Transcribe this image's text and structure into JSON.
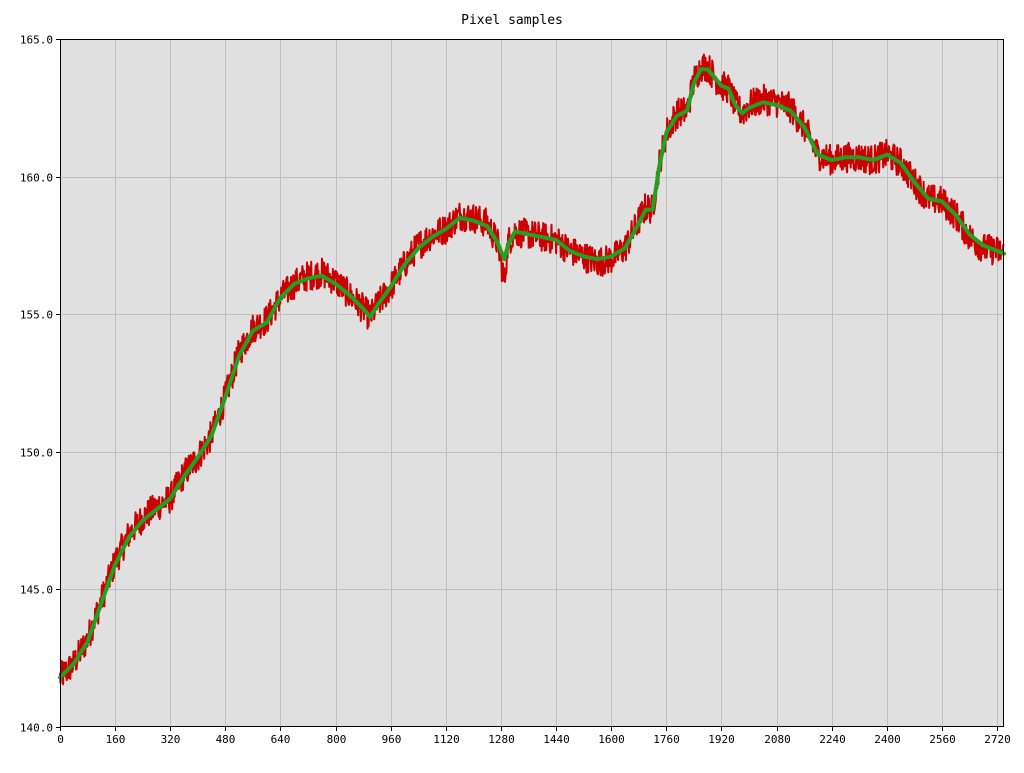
{
  "chart_data": {
    "type": "line",
    "title": "Pixel samples",
    "xlabel": "",
    "ylabel": "",
    "xlim": [
      0,
      2740
    ],
    "ylim": [
      140.0,
      165.0
    ],
    "x_ticks": [
      "0",
      "160",
      "320",
      "480",
      "640",
      "800",
      "960",
      "1120",
      "1280",
      "1440",
      "1600",
      "1760",
      "1920",
      "2080",
      "2240",
      "2400",
      "2560",
      "2720"
    ],
    "y_ticks": [
      "140.0",
      "145.0",
      "150.0",
      "155.0",
      "160.0",
      "165.0"
    ],
    "grid": true,
    "plot_background": "#e0e0e0",
    "grid_color": "#bfbfbf",
    "series": [
      {
        "style": "raw",
        "color": "#cc0000",
        "noise": 0.55,
        "x": [
          0,
          40,
          80,
          120,
          160,
          200,
          240,
          280,
          320,
          360,
          400,
          440,
          480,
          520,
          560,
          600,
          640,
          680,
          720,
          760,
          800,
          840,
          880,
          900,
          920,
          960,
          1000,
          1040,
          1080,
          1120,
          1160,
          1200,
          1240,
          1270,
          1290,
          1300,
          1320,
          1360,
          1400,
          1440,
          1480,
          1520,
          1560,
          1600,
          1640,
          1680,
          1700,
          1720,
          1740,
          1760,
          1790,
          1820,
          1840,
          1860,
          1880,
          1900,
          1920,
          1940,
          1960,
          1980,
          2000,
          2040,
          2080,
          2120,
          2160,
          2200,
          2240,
          2280,
          2320,
          2360,
          2400,
          2440,
          2480,
          2520,
          2560,
          2600,
          2640,
          2680,
          2720,
          2740
        ],
        "y": [
          141.8,
          142.3,
          143.2,
          144.6,
          146.0,
          147.0,
          147.6,
          148.0,
          148.3,
          149.2,
          149.8,
          150.6,
          152.0,
          153.6,
          154.5,
          154.8,
          155.6,
          156.1,
          156.4,
          156.5,
          156.2,
          155.7,
          155.2,
          154.9,
          155.3,
          156.0,
          156.8,
          157.5,
          157.9,
          158.1,
          158.6,
          158.5,
          158.3,
          157.6,
          156.2,
          157.6,
          158.0,
          157.9,
          157.8,
          157.7,
          157.3,
          157.1,
          156.9,
          157.0,
          157.4,
          158.4,
          158.9,
          158.8,
          160.5,
          161.6,
          162.3,
          162.4,
          163.5,
          164.0,
          164.0,
          163.6,
          163.3,
          163.2,
          162.6,
          162.3,
          162.6,
          162.8,
          162.7,
          162.5,
          161.8,
          160.8,
          160.6,
          160.7,
          160.7,
          160.6,
          160.8,
          160.5,
          159.8,
          159.2,
          159.1,
          158.6,
          157.8,
          157.4,
          157.3,
          157.2
        ]
      },
      {
        "style": "smoothed",
        "color": "#22a022",
        "noise": 0,
        "x": [
          0,
          40,
          80,
          120,
          160,
          200,
          240,
          280,
          320,
          360,
          400,
          440,
          480,
          520,
          560,
          600,
          640,
          680,
          720,
          760,
          800,
          840,
          880,
          900,
          920,
          960,
          1000,
          1040,
          1080,
          1120,
          1160,
          1200,
          1240,
          1270,
          1290,
          1300,
          1320,
          1360,
          1400,
          1440,
          1480,
          1520,
          1560,
          1600,
          1640,
          1680,
          1700,
          1720,
          1740,
          1760,
          1790,
          1820,
          1840,
          1860,
          1880,
          1900,
          1920,
          1940,
          1960,
          1980,
          2000,
          2040,
          2080,
          2120,
          2160,
          2200,
          2240,
          2280,
          2320,
          2360,
          2400,
          2440,
          2480,
          2520,
          2560,
          2600,
          2640,
          2680,
          2720,
          2740
        ],
        "y": [
          141.8,
          142.3,
          143.1,
          144.5,
          145.9,
          146.9,
          147.5,
          147.9,
          148.3,
          149.1,
          149.8,
          150.6,
          152.0,
          153.5,
          154.4,
          154.7,
          155.6,
          156.1,
          156.3,
          156.4,
          156.1,
          155.7,
          155.2,
          154.9,
          155.3,
          156.0,
          156.8,
          157.4,
          157.8,
          158.1,
          158.5,
          158.4,
          158.2,
          157.6,
          157.0,
          157.5,
          158.0,
          157.9,
          157.8,
          157.7,
          157.3,
          157.1,
          157.0,
          157.1,
          157.4,
          158.3,
          158.8,
          158.8,
          160.4,
          161.6,
          162.2,
          162.4,
          163.4,
          163.9,
          163.9,
          163.6,
          163.3,
          163.2,
          162.6,
          162.3,
          162.5,
          162.7,
          162.6,
          162.4,
          161.8,
          160.8,
          160.6,
          160.7,
          160.7,
          160.6,
          160.8,
          160.5,
          159.8,
          159.2,
          159.1,
          158.6,
          157.9,
          157.5,
          157.3,
          157.2
        ]
      }
    ]
  }
}
